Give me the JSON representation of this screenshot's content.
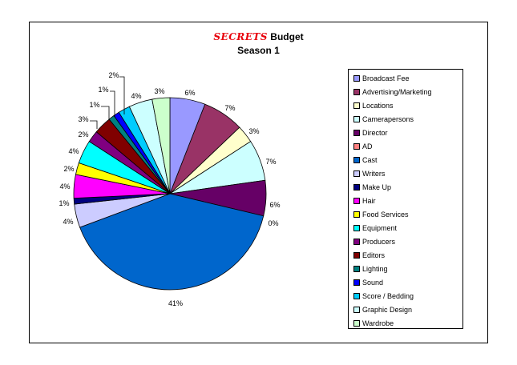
{
  "title": {
    "brand": "SECRETS",
    "rest": " Budget"
  },
  "subtitle": "Season 1",
  "chart_data": {
    "type": "pie",
    "title": "SECRETS Budget",
    "subtitle": "Season 1",
    "legend_position": "right",
    "slices": [
      {
        "label": "Broadcast Fee",
        "value": 6,
        "display": "6%",
        "color": "#9999ff"
      },
      {
        "label": "Advertising/Marketing",
        "value": 7,
        "display": "7%",
        "color": "#993366"
      },
      {
        "label": "Locations",
        "value": 3,
        "display": "3%",
        "color": "#ffffcc"
      },
      {
        "label": "Camerapersons",
        "value": 7,
        "display": "7%",
        "color": "#ccffff"
      },
      {
        "label": "Director",
        "value": 6,
        "display": "6%",
        "color": "#660066"
      },
      {
        "label": "AD",
        "value": 0,
        "display": "0%",
        "color": "#ff8080"
      },
      {
        "label": "Cast",
        "value": 41,
        "display": "41%",
        "color": "#0066cc"
      },
      {
        "label": "Writers",
        "value": 4,
        "display": "4%",
        "color": "#ccccff"
      },
      {
        "label": "Make Up",
        "value": 1,
        "display": "1%",
        "color": "#000080"
      },
      {
        "label": "Hair",
        "value": 4,
        "display": "4%",
        "color": "#ff00ff"
      },
      {
        "label": "Food Services",
        "value": 2,
        "display": "2%",
        "color": "#ffff00"
      },
      {
        "label": "Equipment",
        "value": 4,
        "display": "4%",
        "color": "#00ffff"
      },
      {
        "label": "Producers",
        "value": 2,
        "display": "2%",
        "color": "#800080"
      },
      {
        "label": "Editors",
        "value": 3,
        "display": "3%",
        "color": "#800000"
      },
      {
        "label": "Lighting",
        "value": 1,
        "display": "1%",
        "color": "#008080"
      },
      {
        "label": "Sound",
        "value": 1,
        "display": "1%",
        "color": "#0000ff"
      },
      {
        "label": "Score / Bedding",
        "value": 2,
        "display": "2%",
        "color": "#00ccff"
      },
      {
        "label": "Graphic Design",
        "value": 4,
        "display": "4%",
        "color": "#ccffff"
      },
      {
        "label": "Wardrobe",
        "value": 3,
        "display": "3%",
        "color": "#ccffcc"
      }
    ]
  }
}
